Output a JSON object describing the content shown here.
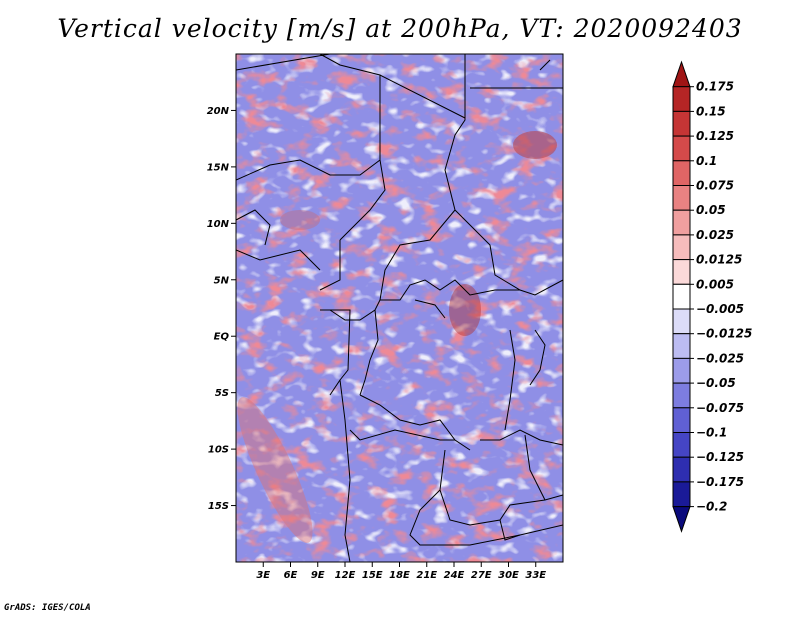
{
  "title": "Vertical velocity [m/s] at 200hPa, VT: 2020092403",
  "credit": "GrADS: IGES/COLA",
  "map": {
    "lon_range": [
      0,
      36
    ],
    "lat_range": [
      -20,
      25
    ],
    "lat_ticks": [
      {
        "label": "20N",
        "lat": 20
      },
      {
        "label": "15N",
        "lat": 15
      },
      {
        "label": "10N",
        "lat": 10
      },
      {
        "label": "5N",
        "lat": 5
      },
      {
        "label": "EQ",
        "lat": 0
      },
      {
        "label": "5S",
        "lat": -5
      },
      {
        "label": "10S",
        "lat": -10
      },
      {
        "label": "15S",
        "lat": -15
      }
    ],
    "lon_ticks": [
      {
        "label": "3E",
        "lon": 3
      },
      {
        "label": "6E",
        "lon": 6
      },
      {
        "label": "9E",
        "lon": 9
      },
      {
        "label": "12E",
        "lon": 12
      },
      {
        "label": "15E",
        "lon": 15
      },
      {
        "label": "18E",
        "lon": 18
      },
      {
        "label": "21E",
        "lon": 21
      },
      {
        "label": "24E",
        "lon": 24
      },
      {
        "label": "27E",
        "lon": 27
      },
      {
        "label": "30E",
        "lon": 30
      },
      {
        "label": "33E",
        "lon": 33
      }
    ]
  },
  "colorbar": {
    "levels": [
      "0.175",
      "0.15",
      "0.125",
      "0.1",
      "0.075",
      "0.05",
      "0.025",
      "0.0125",
      "0.005",
      "−0.005",
      "−0.0125",
      "−0.025",
      "−0.05",
      "−0.075",
      "−0.1",
      "−0.125",
      "−0.175",
      "−0.2"
    ],
    "colors": [
      "#a01515",
      "#b52525",
      "#c53535",
      "#d44a4a",
      "#e06565",
      "#e98282",
      "#f09f9f",
      "#f6bcbc",
      "#fbd9d9",
      "#ffffff",
      "#dcdcf8",
      "#bcbcf2",
      "#9c9cea",
      "#7d7de0",
      "#6060d4",
      "#4545c5",
      "#2e2eb0",
      "#1a1a98",
      "#0a0a7c"
    ]
  }
}
